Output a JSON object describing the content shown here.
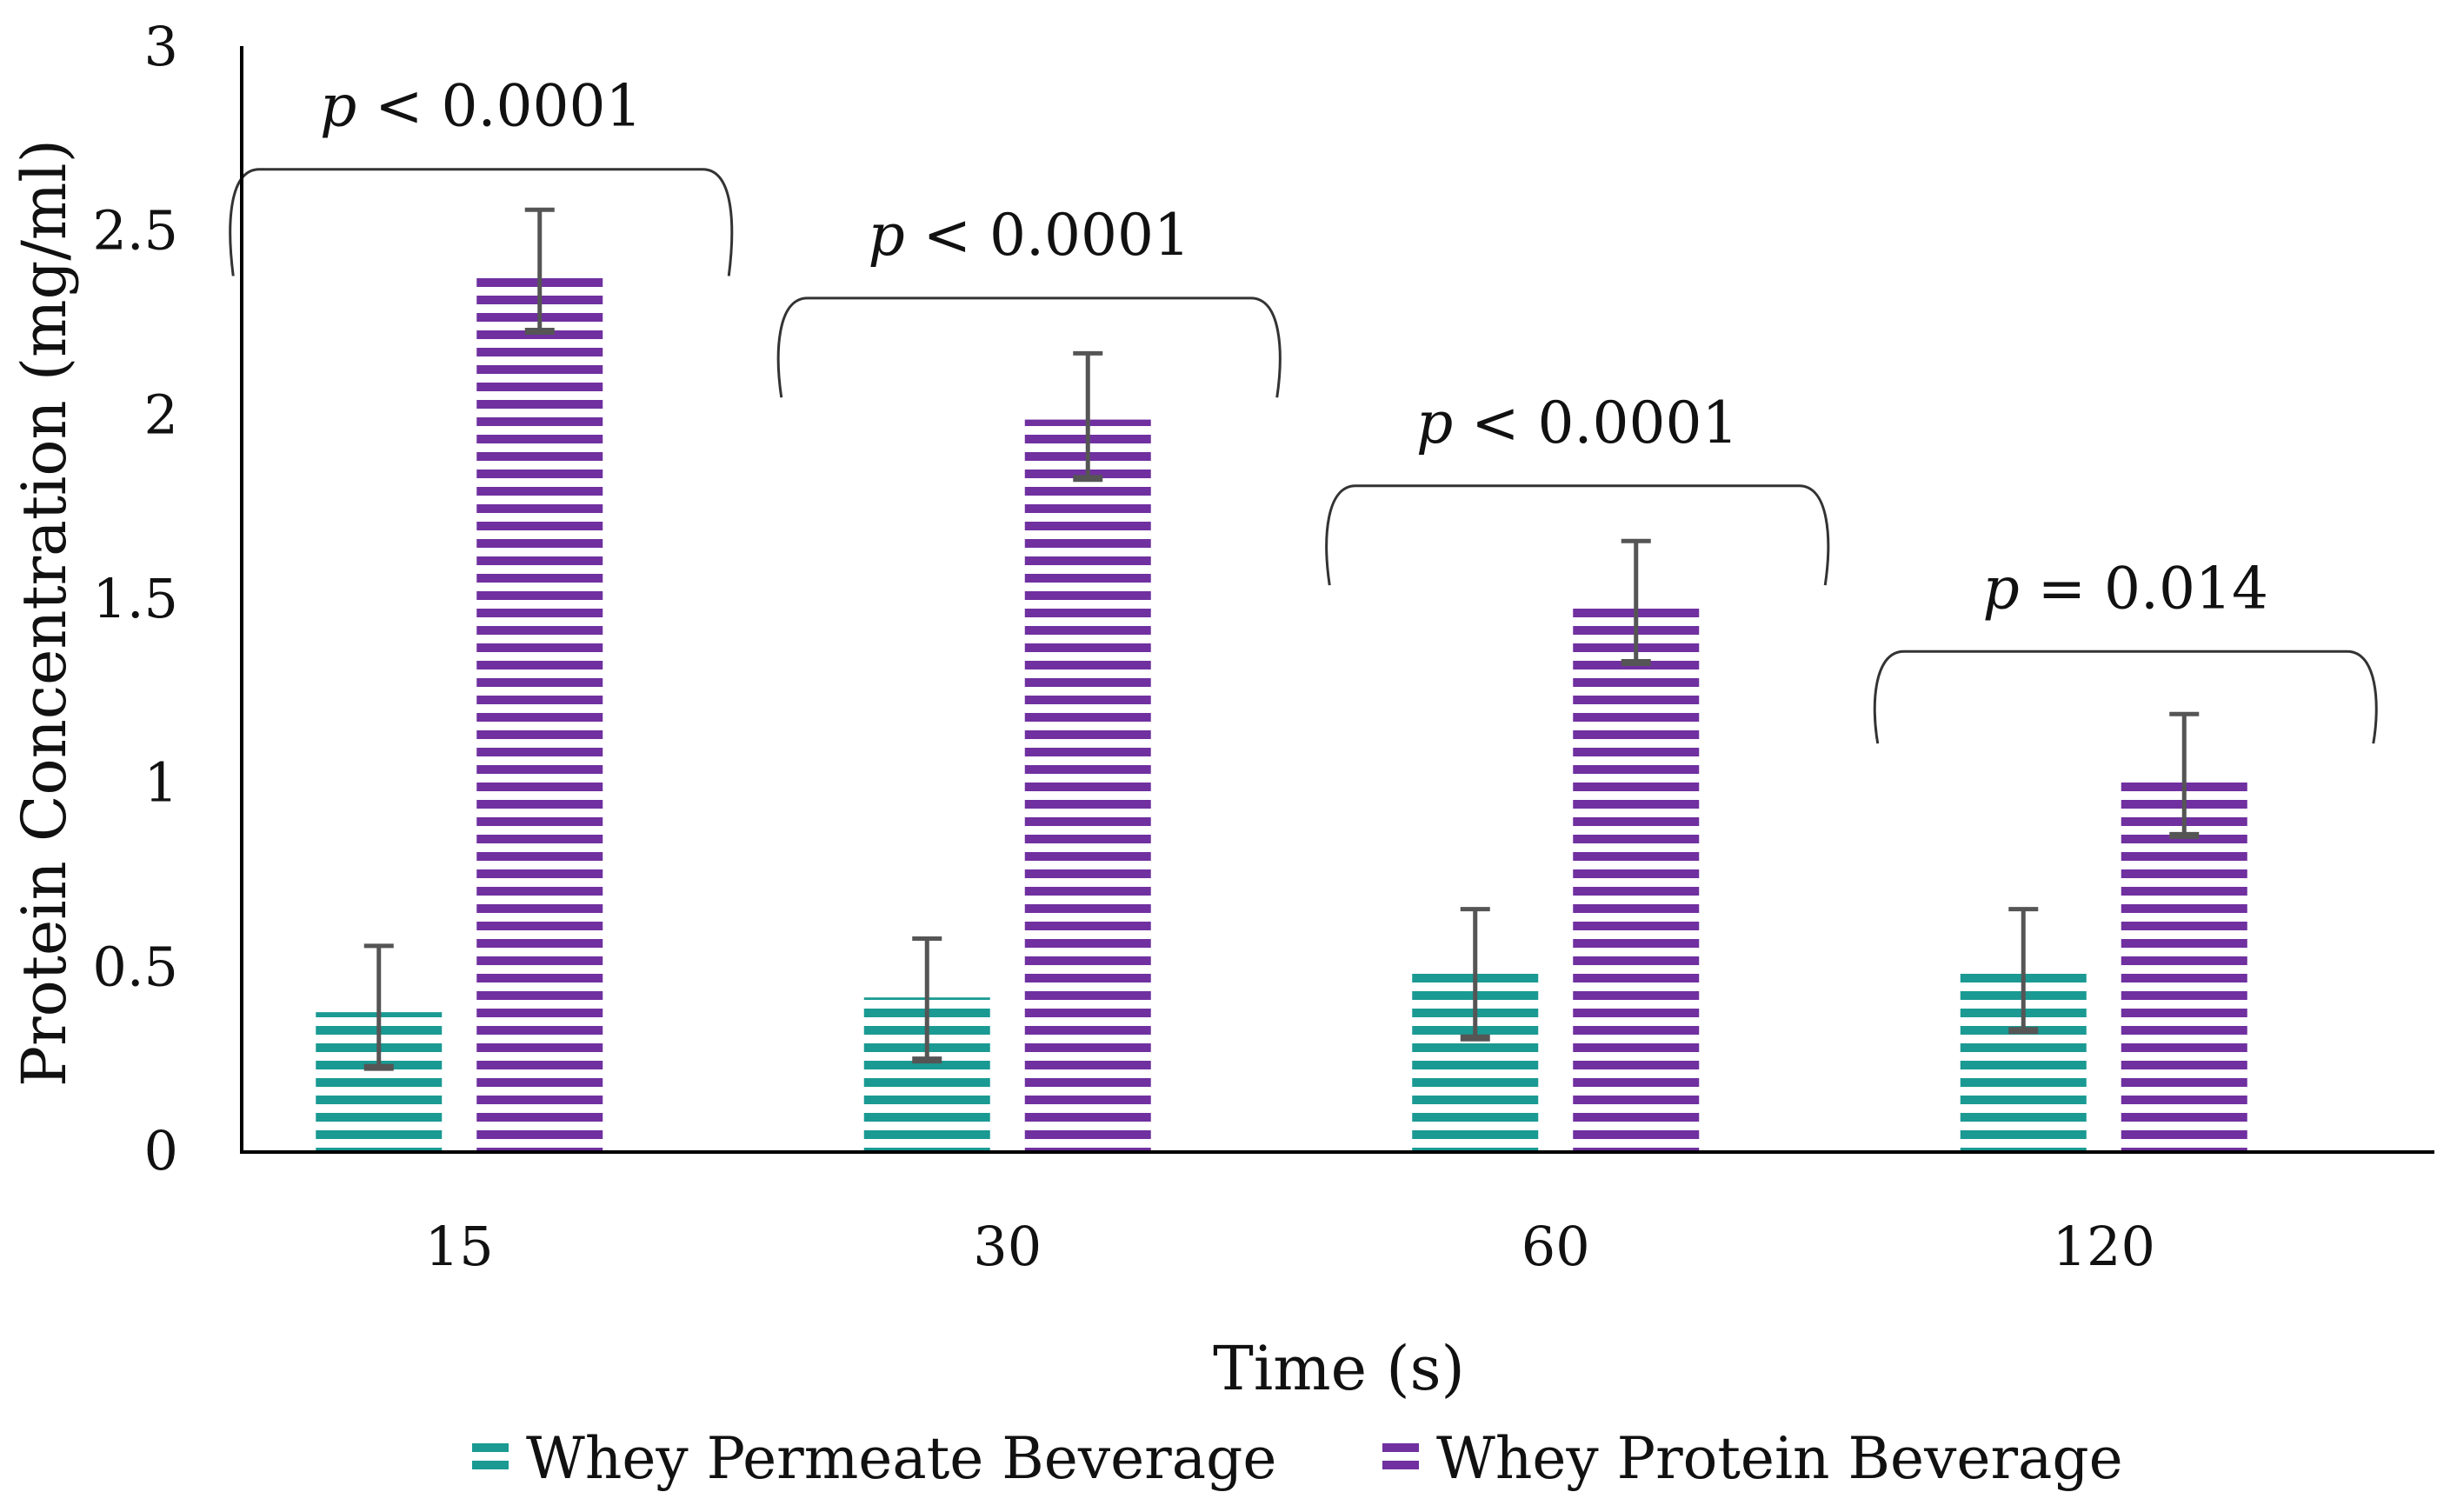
{
  "chart_data": {
    "type": "bar",
    "title": "",
    "xlabel": "Time (s)",
    "ylabel": "Protein Concentration (mg/ml)",
    "categories": [
      "15",
      "30",
      "60",
      "120"
    ],
    "ylim": [
      0,
      3
    ],
    "yticks": [
      "0",
      "0.5",
      "1",
      "1.5",
      "2",
      "2.5",
      "3"
    ],
    "grid": false,
    "legend_position": "bottom",
    "series": [
      {
        "name": "Whey Permeate Beverage",
        "color": "#1a9a93",
        "pattern": "horizontal-stripes",
        "values": [
          0.38,
          0.42,
          0.5,
          0.5
        ],
        "error_low": [
          0.23,
          0.25,
          0.31,
          0.33
        ],
        "error_high": [
          0.56,
          0.58,
          0.66,
          0.66
        ]
      },
      {
        "name": "Whey Protein Beverage",
        "color": "#7030a0",
        "pattern": "horizontal-stripes",
        "values": [
          2.38,
          1.99,
          1.48,
          1.01
        ],
        "error_low": [
          2.23,
          1.83,
          1.33,
          0.86
        ],
        "error_high": [
          2.56,
          2.17,
          1.66,
          1.19
        ]
      }
    ],
    "annotations": [
      {
        "category": "15",
        "p_symbol": "p",
        "text": " < 0.0001",
        "bracket_level": 2.67,
        "bracket_drop": 2.38
      },
      {
        "category": "30",
        "p_symbol": "p",
        "text": " < 0.0001",
        "bracket_level": 2.32,
        "bracket_drop": 2.05
      },
      {
        "category": "60",
        "p_symbol": "p",
        "text": " < 0.0001",
        "bracket_level": 1.81,
        "bracket_drop": 1.54
      },
      {
        "category": "120",
        "p_symbol": "p",
        "text": " = 0.014",
        "bracket_level": 1.36,
        "bracket_drop": 1.11
      }
    ]
  }
}
